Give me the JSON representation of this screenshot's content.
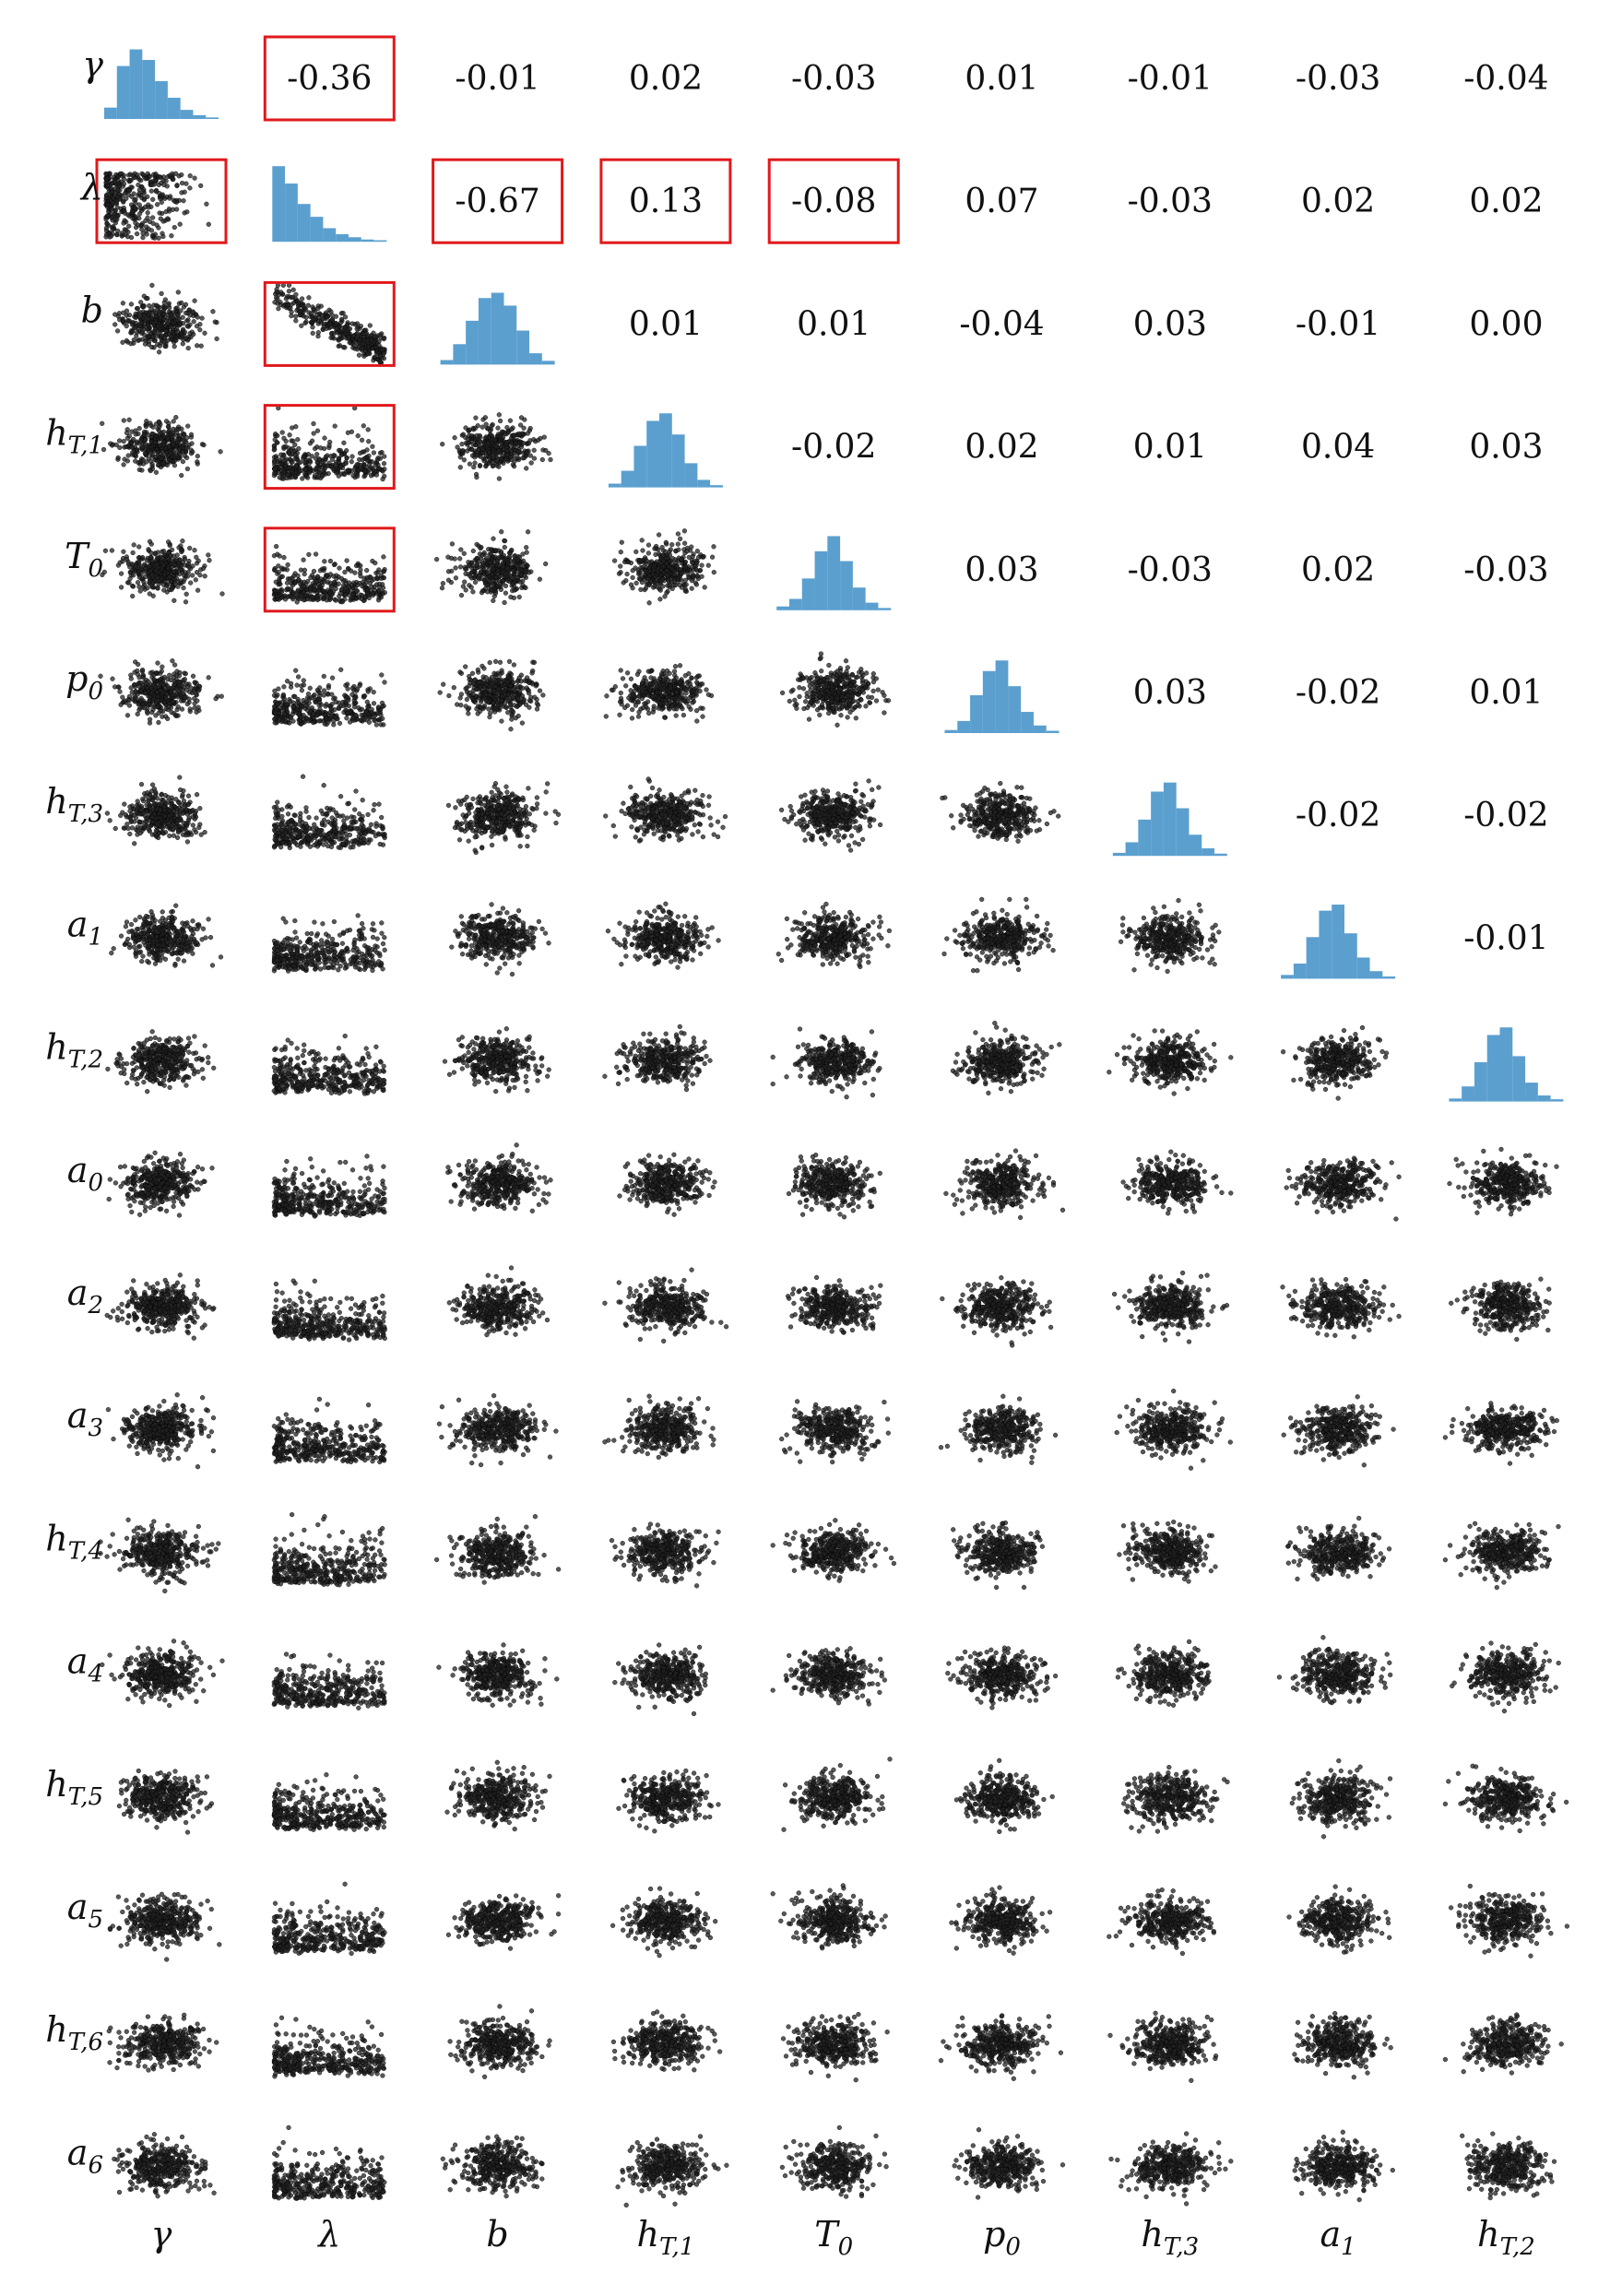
{
  "chart_data": {
    "type": "scatter",
    "title": "",
    "variables": [
      {
        "base": "γ",
        "sub": ""
      },
      {
        "base": "λ",
        "sub": ""
      },
      {
        "base": "b",
        "sub": ""
      },
      {
        "base": "h",
        "sub": "T,1"
      },
      {
        "base": "T",
        "sub": "0"
      },
      {
        "base": "p",
        "sub": "0"
      },
      {
        "base": "h",
        "sub": "T,3"
      },
      {
        "base": "a",
        "sub": "1"
      },
      {
        "base": "h",
        "sub": "T,2"
      },
      {
        "base": "a",
        "sub": "0"
      },
      {
        "base": "a",
        "sub": "2"
      },
      {
        "base": "a",
        "sub": "3"
      },
      {
        "base": "h",
        "sub": "T,4"
      },
      {
        "base": "a",
        "sub": "4"
      },
      {
        "base": "h",
        "sub": "T,5"
      },
      {
        "base": "a",
        "sub": "5"
      },
      {
        "base": "h",
        "sub": "T,6"
      },
      {
        "base": "a",
        "sub": "6"
      }
    ],
    "column_count": 9,
    "correlations": [
      {
        "row": 0,
        "col": 1,
        "text": "-0.36",
        "highlight": true
      },
      {
        "row": 0,
        "col": 2,
        "text": "-0.01",
        "highlight": false
      },
      {
        "row": 0,
        "col": 3,
        "text": "0.02",
        "highlight": false
      },
      {
        "row": 0,
        "col": 4,
        "text": "-0.03",
        "highlight": false
      },
      {
        "row": 0,
        "col": 5,
        "text": "0.01",
        "highlight": false
      },
      {
        "row": 0,
        "col": 6,
        "text": "-0.01",
        "highlight": false
      },
      {
        "row": 0,
        "col": 7,
        "text": "-0.03",
        "highlight": false
      },
      {
        "row": 0,
        "col": 8,
        "text": "-0.04",
        "highlight": false
      },
      {
        "row": 1,
        "col": 2,
        "text": "-0.67",
        "highlight": true
      },
      {
        "row": 1,
        "col": 3,
        "text": "0.13",
        "highlight": true
      },
      {
        "row": 1,
        "col": 4,
        "text": "-0.08",
        "highlight": true
      },
      {
        "row": 1,
        "col": 5,
        "text": "0.07",
        "highlight": false
      },
      {
        "row": 1,
        "col": 6,
        "text": "-0.03",
        "highlight": false
      },
      {
        "row": 1,
        "col": 7,
        "text": "0.02",
        "highlight": false
      },
      {
        "row": 1,
        "col": 8,
        "text": "0.02",
        "highlight": false
      },
      {
        "row": 2,
        "col": 3,
        "text": "0.01",
        "highlight": false
      },
      {
        "row": 2,
        "col": 4,
        "text": "0.01",
        "highlight": false
      },
      {
        "row": 2,
        "col": 5,
        "text": "-0.04",
        "highlight": false
      },
      {
        "row": 2,
        "col": 6,
        "text": "0.03",
        "highlight": false
      },
      {
        "row": 2,
        "col": 7,
        "text": "-0.01",
        "highlight": false
      },
      {
        "row": 2,
        "col": 8,
        "text": "0.00",
        "highlight": false
      },
      {
        "row": 3,
        "col": 4,
        "text": "-0.02",
        "highlight": false
      },
      {
        "row": 3,
        "col": 5,
        "text": "0.02",
        "highlight": false
      },
      {
        "row": 3,
        "col": 6,
        "text": "0.01",
        "highlight": false
      },
      {
        "row": 3,
        "col": 7,
        "text": "0.04",
        "highlight": false
      },
      {
        "row": 3,
        "col": 8,
        "text": "0.03",
        "highlight": false
      },
      {
        "row": 4,
        "col": 5,
        "text": "0.03",
        "highlight": false
      },
      {
        "row": 4,
        "col": 6,
        "text": "-0.03",
        "highlight": false
      },
      {
        "row": 4,
        "col": 7,
        "text": "0.02",
        "highlight": false
      },
      {
        "row": 4,
        "col": 8,
        "text": "-0.03",
        "highlight": false
      },
      {
        "row": 5,
        "col": 6,
        "text": "0.03",
        "highlight": false
      },
      {
        "row": 5,
        "col": 7,
        "text": "-0.02",
        "highlight": false
      },
      {
        "row": 5,
        "col": 8,
        "text": "0.01",
        "highlight": false
      },
      {
        "row": 6,
        "col": 7,
        "text": "-0.02",
        "highlight": false
      },
      {
        "row": 6,
        "col": 8,
        "text": "-0.02",
        "highlight": false
      },
      {
        "row": 7,
        "col": 8,
        "text": "-0.01",
        "highlight": false
      }
    ],
    "highlighted_scatter_panels": [
      {
        "row": 1,
        "col": 0
      },
      {
        "row": 2,
        "col": 1
      },
      {
        "row": 3,
        "col": 1
      },
      {
        "row": 4,
        "col": 1
      }
    ],
    "histogram_bins": [
      [
        0.15,
        0.7,
        0.92,
        0.78,
        0.5,
        0.28,
        0.12,
        0.05,
        0.02
      ],
      [
        1.0,
        0.77,
        0.5,
        0.33,
        0.18,
        0.1,
        0.06,
        0.03,
        0.02
      ],
      [
        0.06,
        0.27,
        0.58,
        0.88,
        0.95,
        0.78,
        0.45,
        0.15,
        0.05
      ],
      [
        0.05,
        0.22,
        0.55,
        0.88,
        0.98,
        0.7,
        0.32,
        0.1,
        0.03
      ],
      [
        0.05,
        0.15,
        0.42,
        0.78,
        0.98,
        0.65,
        0.3,
        0.1,
        0.03
      ],
      [
        0.04,
        0.16,
        0.5,
        0.82,
        0.96,
        0.62,
        0.28,
        0.1,
        0.03
      ],
      [
        0.04,
        0.18,
        0.48,
        0.85,
        0.97,
        0.63,
        0.28,
        0.1,
        0.03
      ],
      [
        0.05,
        0.2,
        0.55,
        0.9,
        0.98,
        0.6,
        0.28,
        0.1,
        0.03
      ],
      [
        0.04,
        0.2,
        0.52,
        0.88,
        0.98,
        0.6,
        0.25,
        0.08,
        0.03
      ]
    ],
    "colors": {
      "histogram": "#5b9fcf",
      "points": "#222222",
      "highlight": "#e0191c",
      "text": "#111111"
    },
    "grid": false,
    "legend": "none"
  }
}
